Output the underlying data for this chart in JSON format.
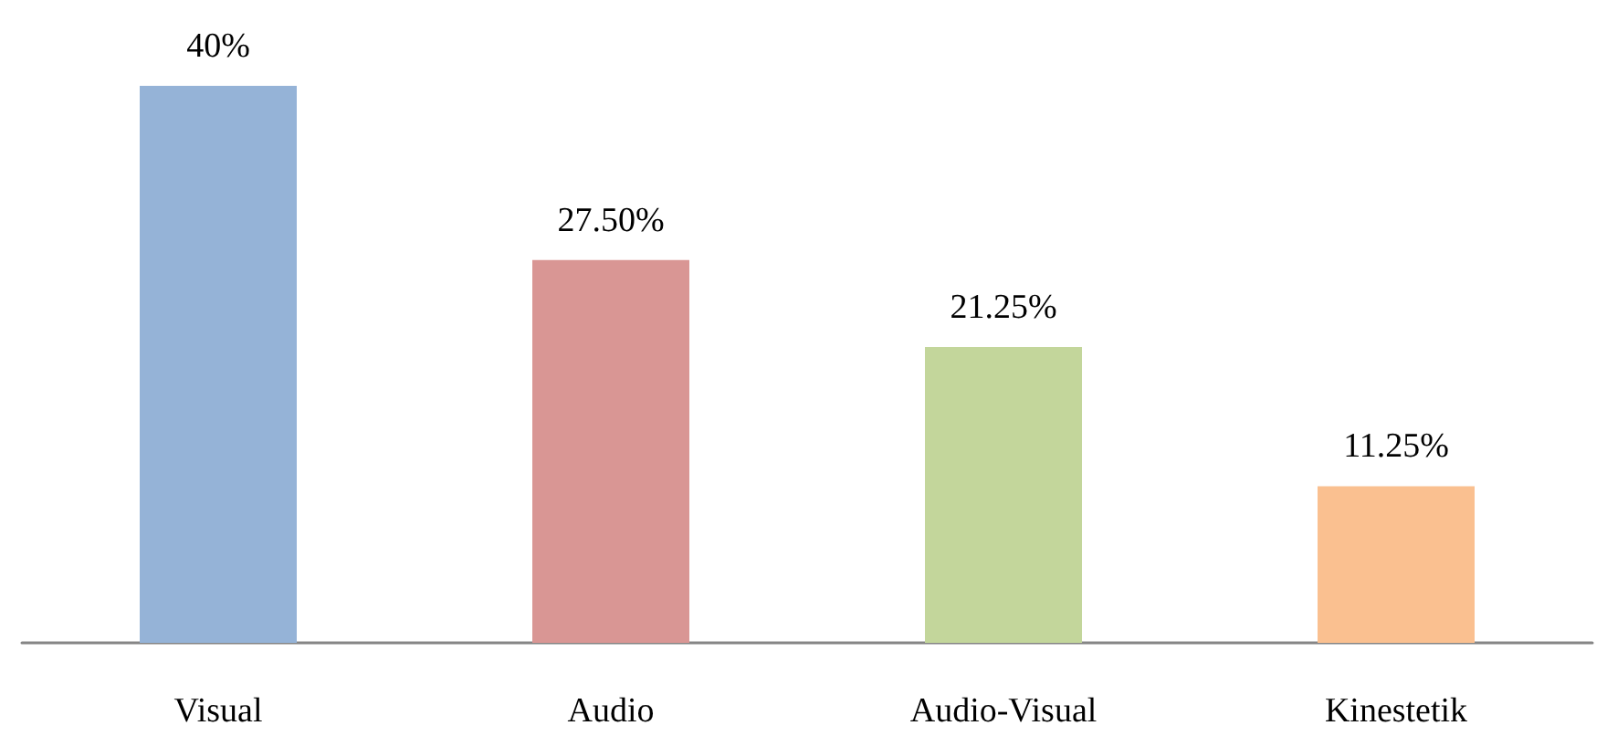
{
  "chart_data": {
    "type": "bar",
    "categories": [
      "Visual",
      "Audio",
      "Audio-Visual",
      "Kinestetik"
    ],
    "values": [
      40,
      27.5,
      21.25,
      11.25
    ],
    "colors": [
      "#95b3d7",
      "#d99694",
      "#c3d69b",
      "#fac090"
    ],
    "value_labels": [
      "40%",
      "27.50%",
      "21.25%",
      "11.25%"
    ],
    "grid": false
  }
}
